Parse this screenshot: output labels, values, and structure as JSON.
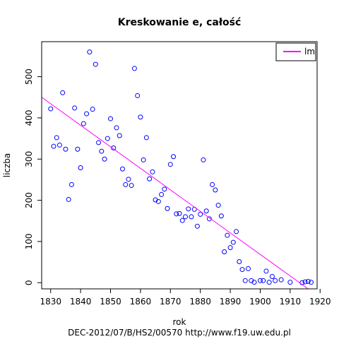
{
  "chart_data": {
    "type": "scatter",
    "title": "Kreskowanie e, całość",
    "xlabel": "rok",
    "ylabel": "liczba",
    "xlim": [
      1827,
      1919
    ],
    "ylim": [
      -15,
      585
    ],
    "x_ticks": [
      1830,
      1840,
      1850,
      1860,
      1870,
      1880,
      1890,
      1900,
      1910,
      1920
    ],
    "y_ticks": [
      0,
      100,
      200,
      300,
      400,
      500
    ],
    "grid": false,
    "legend": {
      "placement": "top-right",
      "entries": [
        {
          "label": "lm",
          "color": "#ff00ff"
        }
      ]
    },
    "series": [
      {
        "marker": "open-circle",
        "color": "#0000ff",
        "points": [
          [
            1830,
            422
          ],
          [
            1831,
            331
          ],
          [
            1832,
            352
          ],
          [
            1833,
            334
          ],
          [
            1834,
            461
          ],
          [
            1835,
            324
          ],
          [
            1836,
            202
          ],
          [
            1837,
            238
          ],
          [
            1838,
            424
          ],
          [
            1839,
            324
          ],
          [
            1840,
            279
          ],
          [
            1841,
            386
          ],
          [
            1842,
            410
          ],
          [
            1843,
            560
          ],
          [
            1844,
            421
          ],
          [
            1845,
            530
          ],
          [
            1846,
            340
          ],
          [
            1847,
            319
          ],
          [
            1848,
            300
          ],
          [
            1849,
            350
          ],
          [
            1850,
            398
          ],
          [
            1851,
            327
          ],
          [
            1852,
            376
          ],
          [
            1853,
            357
          ],
          [
            1854,
            276
          ],
          [
            1855,
            238
          ],
          [
            1856,
            251
          ],
          [
            1857,
            236
          ],
          [
            1858,
            520
          ],
          [
            1859,
            454
          ],
          [
            1860,
            402
          ],
          [
            1861,
            298
          ],
          [
            1862,
            352
          ],
          [
            1863,
            252
          ],
          [
            1864,
            269
          ],
          [
            1865,
            201
          ],
          [
            1866,
            197
          ],
          [
            1867,
            214
          ],
          [
            1868,
            227
          ],
          [
            1869,
            180
          ],
          [
            1870,
            287
          ],
          [
            1871,
            306
          ],
          [
            1872,
            167
          ],
          [
            1873,
            168
          ],
          [
            1874,
            151
          ],
          [
            1875,
            160
          ],
          [
            1876,
            179
          ],
          [
            1877,
            160
          ],
          [
            1878,
            178
          ],
          [
            1879,
            137
          ],
          [
            1880,
            166
          ],
          [
            1881,
            298
          ],
          [
            1882,
            174
          ],
          [
            1883,
            155
          ],
          [
            1884,
            238
          ],
          [
            1885,
            225
          ],
          [
            1886,
            188
          ],
          [
            1887,
            162
          ],
          [
            1888,
            75
          ],
          [
            1889,
            115
          ],
          [
            1890,
            85
          ],
          [
            1891,
            98
          ],
          [
            1892,
            124
          ],
          [
            1893,
            51
          ],
          [
            1894,
            32
          ],
          [
            1895,
            5
          ],
          [
            1896,
            34
          ],
          [
            1897,
            5
          ],
          [
            1898,
            1
          ],
          [
            1900,
            5
          ],
          [
            1901,
            5
          ],
          [
            1902,
            28
          ],
          [
            1903,
            1
          ],
          [
            1904,
            15
          ],
          [
            1905,
            5
          ],
          [
            1907,
            7
          ],
          [
            1910,
            1
          ],
          [
            1914,
            0
          ],
          [
            1915,
            2
          ],
          [
            1916,
            3
          ],
          [
            1917,
            1
          ]
        ]
      }
    ],
    "fit_line": {
      "label": "lm",
      "color": "#ff00ff",
      "x": [
        1827,
        1916
      ],
      "y": [
        450,
        -15
      ]
    }
  },
  "footer": {
    "text": "DEC-2012/07/B/HS2/00570   http://www.f19.uw.edu.pl"
  }
}
